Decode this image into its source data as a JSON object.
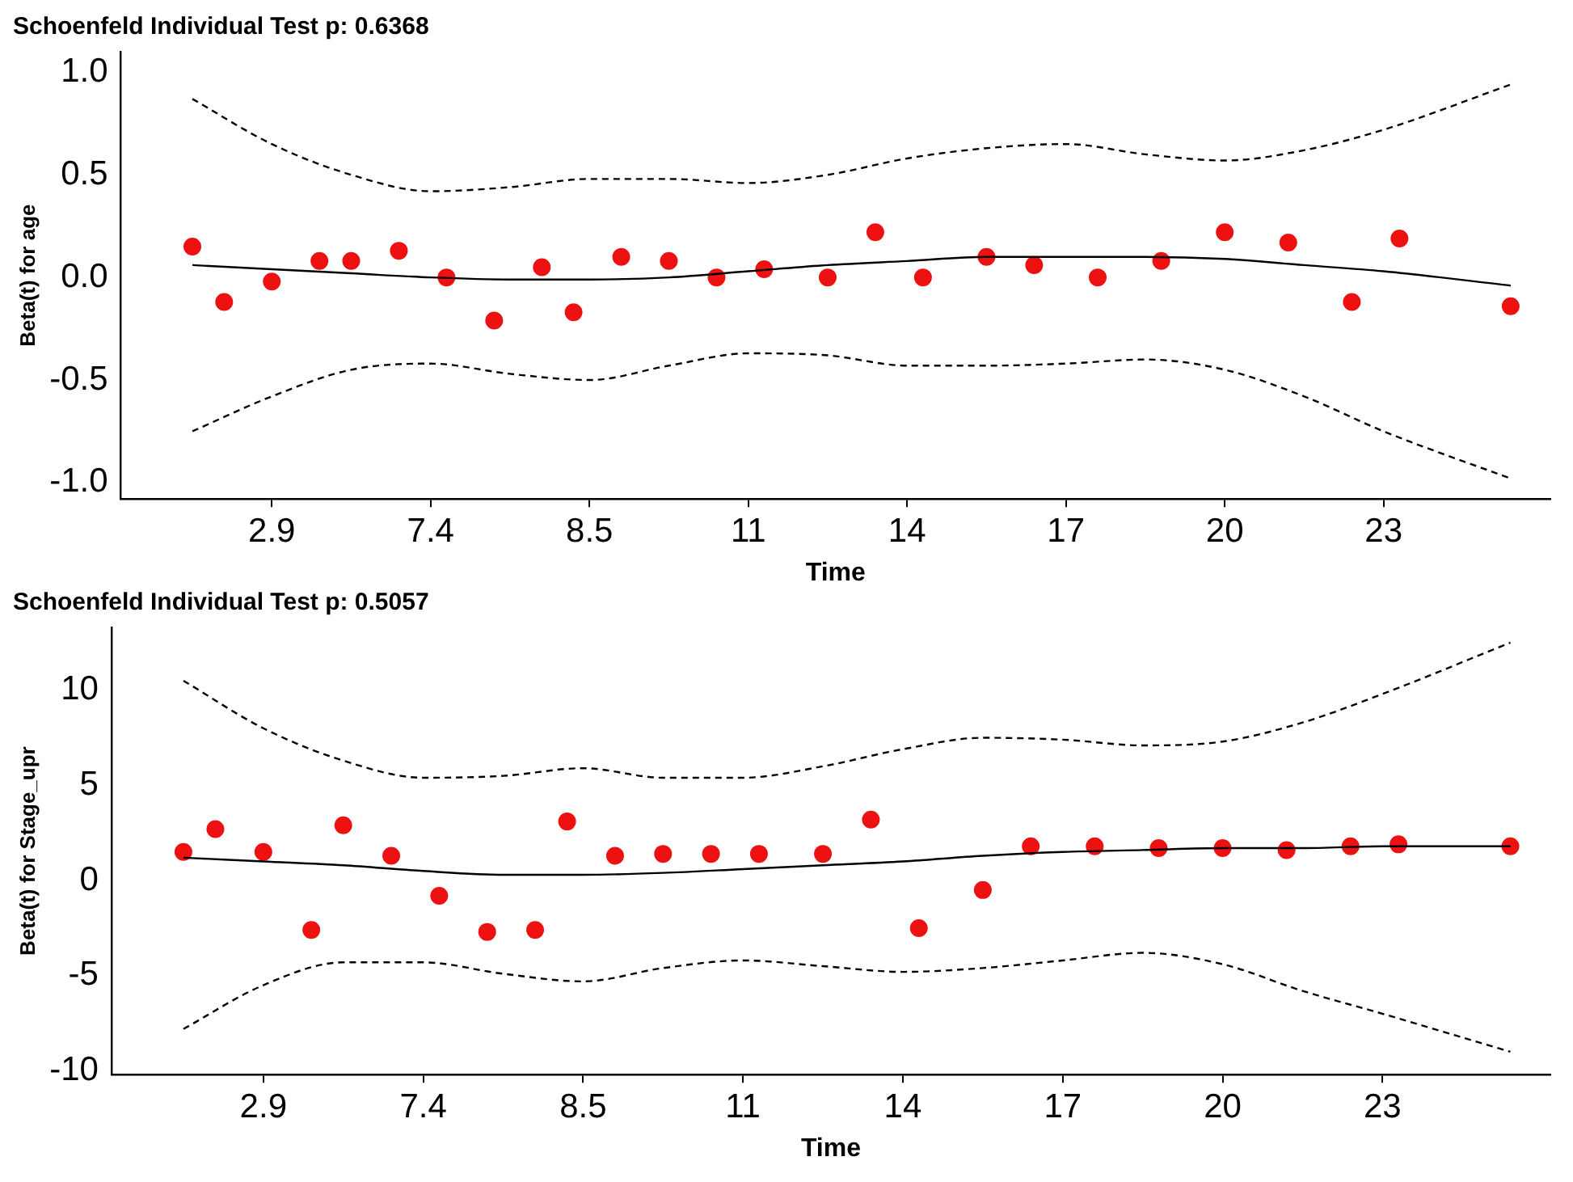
{
  "chart_data": [
    {
      "type": "scatter",
      "title": "Schoenfeld Individual Test p: 0.6368",
      "xlabel": "Time",
      "ylabel": "Beta(t) for age",
      "categories": [
        null,
        null,
        null,
        null,
        null,
        null,
        null,
        null,
        null,
        "2.9",
        null,
        null,
        null,
        null,
        null,
        null,
        null,
        null,
        null,
        "7.4",
        null,
        null,
        null,
        null,
        null,
        null,
        null,
        null,
        null,
        "8.5",
        null,
        null,
        null,
        null,
        null,
        null,
        null,
        null,
        null,
        "11",
        null,
        null,
        null,
        null,
        null,
        null,
        null,
        null,
        null,
        "14",
        null,
        null,
        null,
        null,
        null,
        null,
        null,
        null,
        null,
        "17",
        null,
        null,
        null,
        null,
        null,
        null,
        null,
        null,
        null,
        "20",
        null,
        null,
        null,
        null,
        null,
        null,
        null,
        null,
        null,
        "23",
        null,
        null,
        null,
        null,
        null,
        null,
        null,
        null,
        null,
        null
      ],
      "ylim": [
        -1.08,
        1.1
      ],
      "yticks": [
        {
          "value": -1,
          "label": "-1.0"
        },
        {
          "value": -0.5,
          "label": "-0.5"
        },
        {
          "value": 0,
          "label": "0.0"
        },
        {
          "value": 0.5,
          "label": "0.5"
        },
        {
          "value": 1,
          "label": "1.0"
        }
      ],
      "grid": false,
      "legend": false,
      "series": [
        {
          "type": "line",
          "line_style": "dashed",
          "marker": "none",
          "color": "#000000",
          "values": [
            null,
            null,
            null,
            null,
            0.87,
            null,
            null,
            null,
            null,
            0.65,
            null,
            null,
            null,
            null,
            0.5,
            null,
            null,
            null,
            null,
            0.42,
            null,
            null,
            null,
            null,
            0.44,
            null,
            null,
            null,
            null,
            0.48,
            null,
            null,
            null,
            null,
            0.48,
            null,
            null,
            null,
            null,
            0.46,
            null,
            null,
            null,
            null,
            0.5,
            null,
            null,
            null,
            null,
            0.58,
            null,
            null,
            null,
            null,
            0.63,
            null,
            null,
            null,
            null,
            0.65,
            null,
            null,
            null,
            null,
            0.6,
            null,
            null,
            null,
            null,
            0.57,
            null,
            null,
            null,
            null,
            0.62,
            null,
            null,
            null,
            null,
            0.72,
            null,
            null,
            null,
            null,
            null,
            null,
            null,
            0.94,
            null,
            null
          ]
        },
        {
          "type": "line",
          "line_style": "dashed",
          "marker": "none",
          "color": "#000000",
          "values": [
            null,
            null,
            null,
            null,
            -0.75,
            null,
            null,
            null,
            null,
            -0.58,
            null,
            null,
            null,
            null,
            -0.45,
            null,
            null,
            null,
            null,
            -0.42,
            null,
            null,
            null,
            null,
            -0.47,
            null,
            null,
            null,
            null,
            -0.5,
            null,
            null,
            null,
            null,
            -0.43,
            null,
            null,
            null,
            null,
            -0.37,
            null,
            null,
            null,
            null,
            -0.38,
            null,
            null,
            null,
            null,
            -0.43,
            null,
            null,
            null,
            null,
            -0.43,
            null,
            null,
            null,
            null,
            -0.42,
            null,
            null,
            null,
            null,
            -0.4,
            null,
            null,
            null,
            null,
            -0.45,
            null,
            null,
            null,
            null,
            -0.58,
            null,
            null,
            null,
            null,
            -0.75,
            null,
            null,
            null,
            null,
            null,
            null,
            null,
            -0.98,
            null,
            null
          ]
        },
        {
          "type": "line",
          "line_style": "solid",
          "marker": "none",
          "color": "#000000",
          "values": [
            null,
            null,
            null,
            null,
            0.06,
            null,
            null,
            null,
            null,
            0.04,
            null,
            null,
            null,
            null,
            0.02,
            null,
            null,
            null,
            null,
            0.0,
            null,
            null,
            null,
            null,
            -0.01,
            null,
            null,
            null,
            null,
            -0.01,
            null,
            null,
            null,
            null,
            0.0,
            null,
            null,
            null,
            null,
            0.03,
            null,
            null,
            null,
            null,
            0.06,
            null,
            null,
            null,
            null,
            0.08,
            null,
            null,
            null,
            null,
            0.1,
            null,
            null,
            null,
            null,
            0.1,
            null,
            null,
            null,
            null,
            0.1,
            null,
            null,
            null,
            null,
            0.09,
            null,
            null,
            null,
            null,
            0.06,
            null,
            null,
            null,
            null,
            0.03,
            null,
            null,
            null,
            null,
            null,
            null,
            null,
            -0.04,
            null,
            null
          ]
        },
        {
          "marker": "circle",
          "color": "#ee1111",
          "values": [
            null,
            null,
            null,
            null,
            0.15,
            null,
            -0.12,
            null,
            null,
            -0.02,
            null,
            null,
            0.08,
            null,
            0.08,
            null,
            null,
            0.13,
            null,
            null,
            0.0,
            null,
            null,
            -0.21,
            null,
            null,
            0.05,
            null,
            -0.17,
            null,
            null,
            0.1,
            null,
            null,
            0.08,
            null,
            null,
            0.0,
            null,
            null,
            0.04,
            null,
            null,
            null,
            0.0,
            null,
            null,
            0.22,
            null,
            null,
            0.0,
            null,
            null,
            null,
            0.1,
            null,
            null,
            0.06,
            null,
            null,
            null,
            0.0,
            null,
            null,
            null,
            0.08,
            null,
            null,
            null,
            0.22,
            null,
            null,
            null,
            0.17,
            null,
            null,
            null,
            -0.12,
            null,
            null,
            0.19,
            null,
            null,
            null,
            null,
            null,
            null,
            -0.14,
            null,
            null
          ]
        }
      ]
    },
    {
      "type": "scatter",
      "title": "Schoenfeld Individual Test p: 0.5057",
      "xlabel": "Time",
      "ylabel": "Beta(t) for Stage_upr",
      "categories": [
        null,
        null,
        null,
        null,
        null,
        null,
        null,
        null,
        null,
        "2.9",
        null,
        null,
        null,
        null,
        null,
        null,
        null,
        null,
        null,
        "7.4",
        null,
        null,
        null,
        null,
        null,
        null,
        null,
        null,
        null,
        "8.5",
        null,
        null,
        null,
        null,
        null,
        null,
        null,
        null,
        null,
        "11",
        null,
        null,
        null,
        null,
        null,
        null,
        null,
        null,
        null,
        "14",
        null,
        null,
        null,
        null,
        null,
        null,
        null,
        null,
        null,
        "17",
        null,
        null,
        null,
        null,
        null,
        null,
        null,
        null,
        null,
        "20",
        null,
        null,
        null,
        null,
        null,
        null,
        null,
        null,
        null,
        "23",
        null,
        null,
        null,
        null,
        null,
        null,
        null,
        null,
        null,
        null
      ],
      "ylim": [
        -10.2,
        13.3
      ],
      "yticks": [
        -10,
        -5,
        0,
        5,
        10
      ],
      "grid": false,
      "legend": false,
      "series": [
        {
          "type": "line",
          "line_style": "dashed",
          "marker": "none",
          "color": "#000000",
          "values": [
            null,
            null,
            null,
            null,
            10.5,
            null,
            null,
            null,
            null,
            8,
            null,
            null,
            null,
            null,
            6.3,
            null,
            null,
            null,
            null,
            5.4,
            null,
            null,
            null,
            null,
            5.5,
            null,
            null,
            null,
            null,
            5.9,
            null,
            null,
            null,
            null,
            5.4,
            null,
            null,
            null,
            null,
            5.4,
            null,
            null,
            null,
            null,
            6.0,
            null,
            null,
            null,
            null,
            6.9,
            null,
            null,
            null,
            null,
            7.5,
            null,
            null,
            null,
            null,
            7.4,
            null,
            null,
            null,
            null,
            7.1,
            null,
            null,
            null,
            null,
            7.3,
            null,
            null,
            null,
            null,
            8.3,
            null,
            null,
            null,
            null,
            9.8,
            null,
            null,
            null,
            null,
            null,
            null,
            null,
            12.5,
            null,
            null
          ]
        },
        {
          "type": "line",
          "line_style": "dashed",
          "marker": "none",
          "color": "#000000",
          "values": [
            null,
            null,
            null,
            null,
            -7.8,
            null,
            null,
            null,
            null,
            -5.5,
            null,
            null,
            null,
            null,
            -4.3,
            null,
            null,
            null,
            null,
            -4.3,
            null,
            null,
            null,
            null,
            -4.9,
            null,
            null,
            null,
            null,
            -5.3,
            null,
            null,
            null,
            null,
            -4.6,
            null,
            null,
            null,
            null,
            -4.2,
            null,
            null,
            null,
            null,
            -4.5,
            null,
            null,
            null,
            null,
            -4.8,
            null,
            null,
            null,
            null,
            -4.6,
            null,
            null,
            null,
            null,
            -4.2,
            null,
            null,
            null,
            null,
            -3.8,
            null,
            null,
            null,
            null,
            -4.4,
            null,
            null,
            null,
            null,
            -5.8,
            null,
            null,
            null,
            null,
            -7.0,
            null,
            null,
            null,
            null,
            null,
            null,
            null,
            -9.0,
            null,
            null
          ]
        },
        {
          "type": "line",
          "line_style": "solid",
          "marker": "none",
          "color": "#000000",
          "values": [
            null,
            null,
            null,
            null,
            1.2,
            null,
            null,
            null,
            null,
            1.0,
            null,
            null,
            null,
            null,
            0.8,
            null,
            null,
            null,
            null,
            0.5,
            null,
            null,
            null,
            null,
            0.3,
            null,
            null,
            null,
            null,
            0.3,
            null,
            null,
            null,
            null,
            0.4,
            null,
            null,
            null,
            null,
            0.6,
            null,
            null,
            null,
            null,
            0.8,
            null,
            null,
            null,
            null,
            1.0,
            null,
            null,
            null,
            null,
            1.3,
            null,
            null,
            null,
            null,
            1.5,
            null,
            null,
            null,
            null,
            1.6,
            null,
            null,
            null,
            null,
            1.7,
            null,
            null,
            null,
            null,
            1.7,
            null,
            null,
            null,
            null,
            1.8,
            null,
            null,
            null,
            null,
            null,
            null,
            null,
            1.8,
            null,
            null
          ]
        },
        {
          "marker": "circle",
          "color": "#ee1111",
          "values": [
            null,
            null,
            null,
            null,
            1.5,
            null,
            2.7,
            null,
            null,
            1.5,
            null,
            null,
            -2.6,
            null,
            2.9,
            null,
            null,
            1.3,
            null,
            null,
            -0.8,
            null,
            null,
            -2.7,
            null,
            null,
            -2.6,
            null,
            3.1,
            null,
            null,
            1.3,
            null,
            null,
            1.4,
            null,
            null,
            1.4,
            null,
            null,
            1.4,
            null,
            null,
            null,
            1.4,
            null,
            null,
            3.2,
            null,
            null,
            -2.5,
            null,
            null,
            null,
            -0.5,
            null,
            null,
            1.8,
            null,
            null,
            null,
            1.8,
            null,
            null,
            null,
            1.7,
            null,
            null,
            null,
            1.7,
            null,
            null,
            null,
            1.6,
            null,
            null,
            null,
            1.8,
            null,
            null,
            1.9,
            null,
            null,
            null,
            null,
            null,
            null,
            1.8,
            null,
            null
          ]
        }
      ]
    }
  ]
}
